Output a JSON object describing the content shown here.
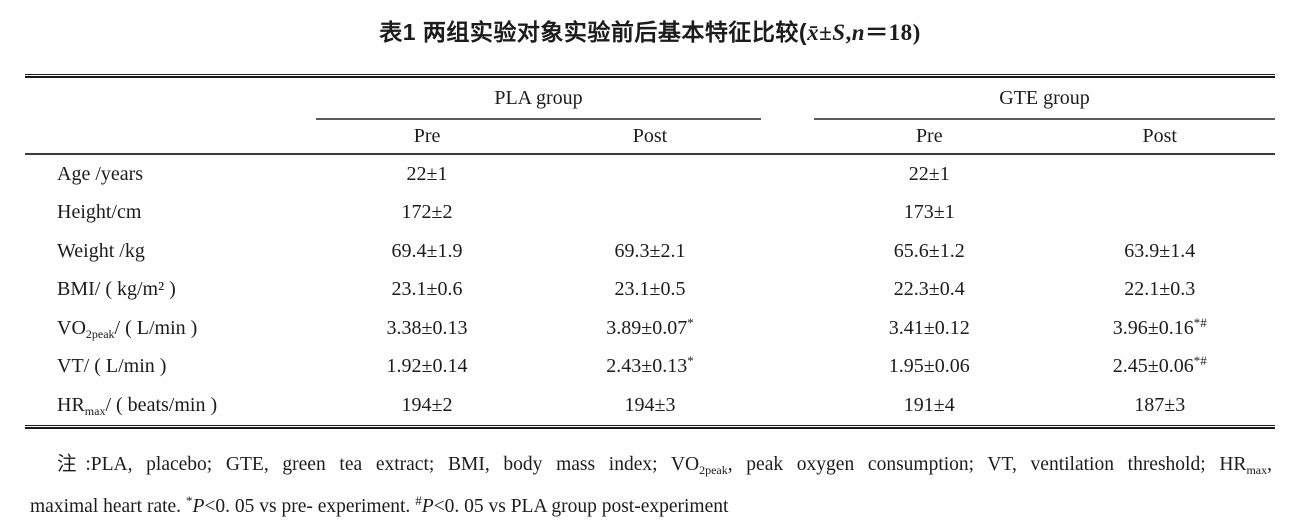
{
  "title": {
    "segs": [
      {
        "t": "表1  两组实验对象实验前后基本特征比较(",
        "s": "cjk"
      },
      {
        "t": "x̄",
        "s": "i"
      },
      {
        "t": "±"
      },
      {
        "t": "S",
        "s": "i"
      },
      {
        "t": ","
      },
      {
        "t": "n",
        "s": "i"
      },
      {
        "t": "＝18)"
      }
    ]
  },
  "table": {
    "groups": [
      {
        "label": "PLA group"
      },
      {
        "label": "GTE group"
      }
    ],
    "subheaders": [
      "Pre",
      "Post",
      "Pre",
      "Post"
    ],
    "rows": [
      {
        "label": [
          {
            "t": "Age /years"
          }
        ],
        "cells": [
          {
            "v": "22±1",
            "m": ""
          },
          {
            "v": "",
            "m": ""
          },
          {
            "v": "22±1",
            "m": ""
          },
          {
            "v": "",
            "m": ""
          }
        ]
      },
      {
        "label": [
          {
            "t": "Height/cm"
          }
        ],
        "cells": [
          {
            "v": "172±2",
            "m": ""
          },
          {
            "v": "",
            "m": ""
          },
          {
            "v": "173±1",
            "m": ""
          },
          {
            "v": "",
            "m": ""
          }
        ]
      },
      {
        "label": [
          {
            "t": "Weight /kg"
          }
        ],
        "cells": [
          {
            "v": "69.4±1.9",
            "m": ""
          },
          {
            "v": "69.3±2.1",
            "m": ""
          },
          {
            "v": "65.6±1.2",
            "m": ""
          },
          {
            "v": "63.9±1.4",
            "m": ""
          }
        ]
      },
      {
        "label": [
          {
            "t": "BMI/ ( kg/m² )"
          }
        ],
        "cells": [
          {
            "v": "23.1±0.6",
            "m": ""
          },
          {
            "v": "23.1±0.5",
            "m": ""
          },
          {
            "v": "22.3±0.4",
            "m": ""
          },
          {
            "v": "22.1±0.3",
            "m": ""
          }
        ]
      },
      {
        "label": [
          {
            "t": "VO"
          },
          {
            "t": "2peak",
            "s": "sub"
          },
          {
            "t": "/ ( L/min )"
          }
        ],
        "cells": [
          {
            "v": "3.38±0.13",
            "m": ""
          },
          {
            "v": "3.89±0.07",
            "m": "*"
          },
          {
            "v": "3.41±0.12",
            "m": ""
          },
          {
            "v": "3.96±0.16",
            "m": "*#"
          }
        ]
      },
      {
        "label": [
          {
            "t": "VT/ ( L/min )"
          }
        ],
        "cells": [
          {
            "v": "1.92±0.14",
            "m": ""
          },
          {
            "v": "2.43±0.13",
            "m": "*"
          },
          {
            "v": "1.95±0.06",
            "m": ""
          },
          {
            "v": "2.45±0.06",
            "m": "*#"
          }
        ]
      },
      {
        "label": [
          {
            "t": "HR"
          },
          {
            "t": "max",
            "s": "sub"
          },
          {
            "t": "/ ( beats/min )"
          }
        ],
        "cells": [
          {
            "v": "194±2",
            "m": ""
          },
          {
            "v": "194±3",
            "m": ""
          },
          {
            "v": "191±4",
            "m": ""
          },
          {
            "v": "187±3",
            "m": ""
          }
        ]
      }
    ]
  },
  "notes": {
    "line1": [
      {
        "t": "注:PLA, placebo;  GTE, green tea extract;  BMI, body mass index;  VO"
      },
      {
        "t": "2peak",
        "s": "sub"
      },
      {
        "t": ", peak oxygen consumption;  VT, ventilation threshold;  HR"
      },
      {
        "t": "max",
        "s": "sub"
      },
      {
        "t": ","
      }
    ],
    "line2": [
      {
        "t": "maximal heart rate. "
      },
      {
        "t": "*",
        "s": "sup"
      },
      {
        "t": "P",
        "s": "i"
      },
      {
        "t": "<0. 05 vs pre- experiment. "
      },
      {
        "t": "#",
        "s": "sup"
      },
      {
        "t": "P",
        "s": "i"
      },
      {
        "t": "<0. 05 vs PLA group post-experiment"
      }
    ]
  }
}
